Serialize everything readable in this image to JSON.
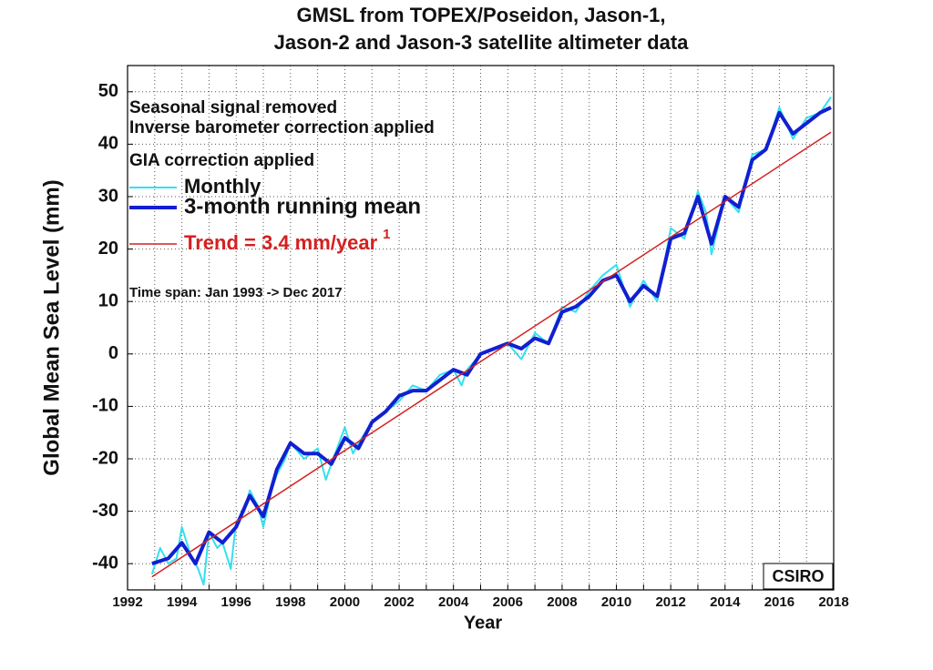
{
  "chart_data": {
    "type": "line",
    "title": [
      "GMSL from TOPEX/Poseidon, Jason-1,",
      "Jason-2 and Jason-3 satellite altimeter data"
    ],
    "x_label": "Year",
    "y_label": "Global Mean Sea Level (mm)",
    "annotations": [
      "Seasonal signal removed",
      "Inverse barometer correction applied",
      "GIA correction applied",
      "Time span: Jan 1993 -> Dec 2017",
      "CSIRO"
    ],
    "trend_superscript": "1",
    "xlim": [
      1992,
      2018
    ],
    "ylim": [
      -45,
      55
    ],
    "xticks": [
      1992,
      1994,
      1996,
      1998,
      2000,
      2002,
      2004,
      2006,
      2008,
      2010,
      2012,
      2014,
      2016,
      2018
    ],
    "xminorticks": [
      1993,
      1995,
      1997,
      1999,
      2001,
      2003,
      2005,
      2007,
      2009,
      2011,
      2013,
      2015,
      2017
    ],
    "yticks": [
      -40,
      -30,
      -20,
      -10,
      0,
      10,
      20,
      30,
      40,
      50
    ],
    "grid": true,
    "series": [
      {
        "name": "Monthly",
        "color": "#33e0f0",
        "width": 2,
        "x": [
          1992.9,
          1993.2,
          1993.5,
          1993.8,
          1994.0,
          1994.3,
          1994.6,
          1994.8,
          1995.0,
          1995.3,
          1995.5,
          1995.8,
          1996.0,
          1996.3,
          1996.5,
          1996.8,
          1997.0,
          1997.3,
          1997.5,
          1997.8,
          1998.0,
          1998.5,
          1999.0,
          1999.3,
          1999.5,
          2000.0,
          2000.3,
          2000.5,
          2001.0,
          2001.5,
          2002.0,
          2002.5,
          2003.0,
          2003.5,
          2004.0,
          2004.3,
          2004.5,
          2005.0,
          2005.5,
          2006.0,
          2006.5,
          2007.0,
          2007.5,
          2008.0,
          2008.5,
          2009.0,
          2009.5,
          2010.0,
          2010.5,
          2011.0,
          2011.5,
          2012.0,
          2012.5,
          2013.0,
          2013.3,
          2013.5,
          2014.0,
          2014.5,
          2015.0,
          2015.5,
          2016.0,
          2016.5,
          2017.0,
          2017.5,
          2017.9
        ],
        "values": [
          -42,
          -37,
          -40,
          -39,
          -33,
          -38,
          -41,
          -44,
          -34,
          -37,
          -36,
          -41,
          -32,
          -30,
          -26,
          -29,
          -33,
          -26,
          -23,
          -20,
          -17,
          -20,
          -18,
          -24,
          -21,
          -14,
          -19,
          -17,
          -13,
          -11,
          -9,
          -6,
          -7,
          -4,
          -3,
          -6,
          -3,
          0,
          1,
          2,
          -1,
          4,
          2,
          9,
          8,
          12,
          15,
          17,
          9,
          14,
          10,
          24,
          22,
          31,
          27,
          19,
          30,
          27,
          38,
          39,
          47,
          41,
          45,
          46,
          49
        ]
      },
      {
        "name": "3-month running mean",
        "color": "#1020d0",
        "width": 4,
        "x": [
          1992.9,
          1993.5,
          1994.0,
          1994.5,
          1995.0,
          1995.5,
          1996.0,
          1996.5,
          1997.0,
          1997.5,
          1998.0,
          1998.5,
          1999.0,
          1999.5,
          2000.0,
          2000.5,
          2001.0,
          2001.5,
          2002.0,
          2002.5,
          2003.0,
          2003.5,
          2004.0,
          2004.5,
          2005.0,
          2005.5,
          2006.0,
          2006.5,
          2007.0,
          2007.5,
          2008.0,
          2008.5,
          2009.0,
          2009.5,
          2010.0,
          2010.5,
          2011.0,
          2011.5,
          2012.0,
          2012.5,
          2013.0,
          2013.5,
          2014.0,
          2014.5,
          2015.0,
          2015.5,
          2016.0,
          2016.5,
          2017.0,
          2017.5,
          2017.9
        ],
        "values": [
          -40,
          -39,
          -36,
          -40,
          -34,
          -36,
          -33,
          -27,
          -31,
          -22,
          -17,
          -19,
          -19,
          -21,
          -16,
          -18,
          -13,
          -11,
          -8,
          -7,
          -7,
          -5,
          -3,
          -4,
          0,
          1,
          2,
          1,
          3,
          2,
          8,
          9,
          11,
          14,
          15,
          10,
          13,
          11,
          22,
          23,
          30,
          21,
          30,
          28,
          37,
          39,
          46,
          42,
          44,
          46,
          47
        ]
      },
      {
        "name": "Trend = 3.4 mm/year",
        "color": "#d42020",
        "width": 1.5,
        "x": [
          1992.9,
          2017.9
        ],
        "values": [
          -42.5,
          42.3
        ]
      }
    ]
  }
}
